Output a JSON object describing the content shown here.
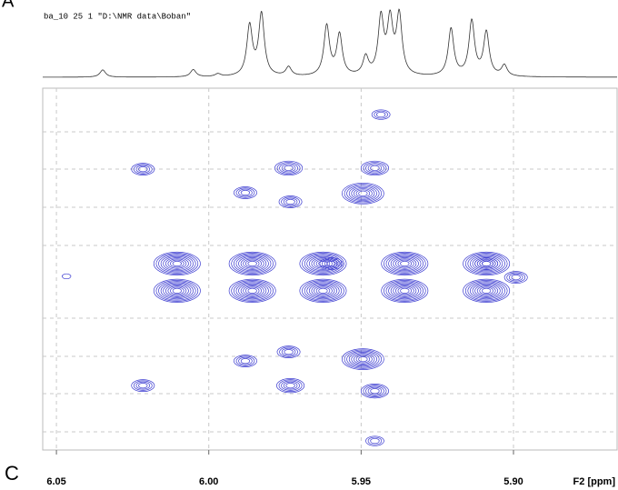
{
  "panel_labels": [
    "A",
    "C"
  ],
  "file_label": "ba_10  25  1  \"D:\\NMR data\\Boban\"",
  "chart_data": {
    "type": "contour",
    "x_label": "F2 [ppm]",
    "xlim": [
      6.0545,
      5.866
    ],
    "xticks": [
      {
        "value": 6.05,
        "label": "6.05"
      },
      {
        "value": 6.0,
        "label": "6.00"
      },
      {
        "value": 5.95,
        "label": "5.95"
      },
      {
        "value": 5.9,
        "label": "5.90"
      }
    ],
    "ylim": [
      0,
      1
    ],
    "color": "#3a3ad0",
    "projection": {
      "x": [
        6.0348,
        6.0051,
        5.997,
        5.9866,
        5.9827,
        5.9738,
        5.9613,
        5.9571,
        5.9485,
        5.9435,
        5.9405,
        5.9375,
        5.9205,
        5.9137,
        5.9089,
        5.903
      ],
      "height": [
        8,
        8,
        3,
        55,
        68,
        10,
        55,
        45,
        20,
        62,
        58,
        65,
        52,
        60,
        48,
        12
      ]
    },
    "peaks": {
      "x": [
        5.9435,
        6.0216,
        5.988,
        5.9738,
        5.9732,
        5.9455,
        5.9494,
        6.0467,
        5.9598,
        5.9089,
        5.8992,
        6.0104,
        5.9857,
        5.9625,
        5.9357,
        5.9089,
        6.0104,
        5.9857,
        5.9625,
        5.9357,
        5.9089,
        5.988,
        5.9738,
        5.9732,
        6.0216,
        5.9494,
        5.9455,
        5.9455
      ],
      "y": [
        0.073,
        0.224,
        0.289,
        0.221,
        0.314,
        0.221,
        0.291,
        0.52,
        0.485,
        0.485,
        0.523,
        0.485,
        0.485,
        0.485,
        0.485,
        0.485,
        0.56,
        0.56,
        0.56,
        0.56,
        0.56,
        0.754,
        0.729,
        0.822,
        0.822,
        0.749,
        0.837,
        0.975
      ],
      "size": [
        3,
        4,
        4,
        5,
        4,
        5,
        8,
        1,
        4,
        4,
        4,
        9,
        9,
        9,
        9,
        9,
        9,
        9,
        9,
        9,
        9,
        4,
        4,
        5,
        4,
        8,
        5,
        3
      ]
    }
  }
}
